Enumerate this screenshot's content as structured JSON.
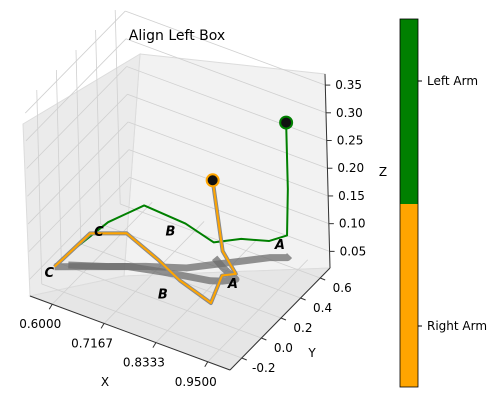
{
  "chart_data": {
    "type": "line3d",
    "title": "Align Left Box",
    "xlabel": "X",
    "ylabel": "Y",
    "zlabel": "Z",
    "x_ticks": [
      "0.6000",
      "0.7167",
      "0.8333",
      "0.9500"
    ],
    "y_ticks": [
      "-0.2",
      "0.0",
      "0.2",
      "0.4",
      "0.6"
    ],
    "z_ticks": [
      "0.05",
      "0.10",
      "0.15",
      "0.20",
      "0.25",
      "0.30",
      "0.35"
    ],
    "grid": true,
    "point_labels": [
      "A",
      "B",
      "C"
    ],
    "series": [
      {
        "name": "Left Arm",
        "color": "#008000",
        "start_marker": "circle",
        "points": [
          {
            "x": 0.6,
            "y": -0.15,
            "z": 0.08
          },
          {
            "x": 0.67,
            "y": -0.05,
            "z": 0.14
          },
          {
            "x": 0.73,
            "y": 0.05,
            "z": 0.17
          },
          {
            "x": 0.8,
            "y": 0.15,
            "z": 0.14
          },
          {
            "x": 0.84,
            "y": 0.25,
            "z": 0.1
          },
          {
            "x": 0.88,
            "y": 0.35,
            "z": 0.1
          },
          {
            "x": 0.92,
            "y": 0.45,
            "z": 0.09
          },
          {
            "x": 0.95,
            "y": 0.5,
            "z": 0.1
          },
          {
            "x": 0.95,
            "y": 0.52,
            "z": 0.18
          },
          {
            "x": 0.95,
            "y": 0.52,
            "z": 0.3
          }
        ]
      },
      {
        "name": "Right Arm",
        "color": "#FFA500",
        "start_marker": "circle",
        "points": [
          {
            "x": 0.58,
            "y": -0.2,
            "z": 0.06
          },
          {
            "x": 0.64,
            "y": -0.1,
            "z": 0.12
          },
          {
            "x": 0.7,
            "y": 0.0,
            "z": 0.12
          },
          {
            "x": 0.76,
            "y": 0.05,
            "z": 0.08
          },
          {
            "x": 0.8,
            "y": 0.08,
            "z": 0.05
          },
          {
            "x": 0.86,
            "y": 0.12,
            "z": 0.02
          },
          {
            "x": 0.88,
            "y": 0.15,
            "z": 0.07
          },
          {
            "x": 0.9,
            "y": 0.2,
            "z": 0.07
          },
          {
            "x": 0.86,
            "y": 0.25,
            "z": 0.09
          },
          {
            "x": 0.83,
            "y": 0.3,
            "z": 0.2
          }
        ]
      }
    ],
    "colorbar": {
      "segments": [
        {
          "label": "Left Arm",
          "color": "#008000"
        },
        {
          "label": "Right Arm",
          "color": "#FFA500"
        }
      ]
    }
  }
}
